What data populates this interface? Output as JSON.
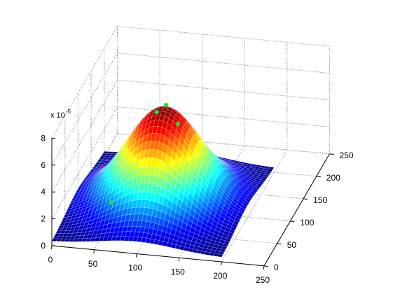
{
  "chart_data": {
    "type": "surface",
    "title": "",
    "xlabel": "",
    "ylabel": "",
    "zlabel": "",
    "colormap": "jet",
    "grid": true,
    "x": {
      "lim": [
        0,
        250
      ],
      "ticks": [
        "0",
        "50",
        "100",
        "150",
        "200",
        "250"
      ]
    },
    "y": {
      "lim": [
        0,
        250
      ],
      "ticks": [
        "0",
        "50",
        "100",
        "150",
        "200",
        "250"
      ]
    },
    "z": {
      "lim": [
        0,
        8
      ],
      "ticks": [
        "0",
        "2",
        "4",
        "6",
        "8"
      ],
      "multiplier": {
        "prefix": "x 10",
        "exponent": "-5"
      }
    },
    "surface": {
      "shape": "gaussian",
      "grid_extent": [
        0,
        200
      ],
      "peak_x": 100,
      "peak_y": 100,
      "peak_z": 7.5,
      "base_z": 0.3,
      "sigma": 45
    },
    "marker_color": "#22dd33"
  }
}
